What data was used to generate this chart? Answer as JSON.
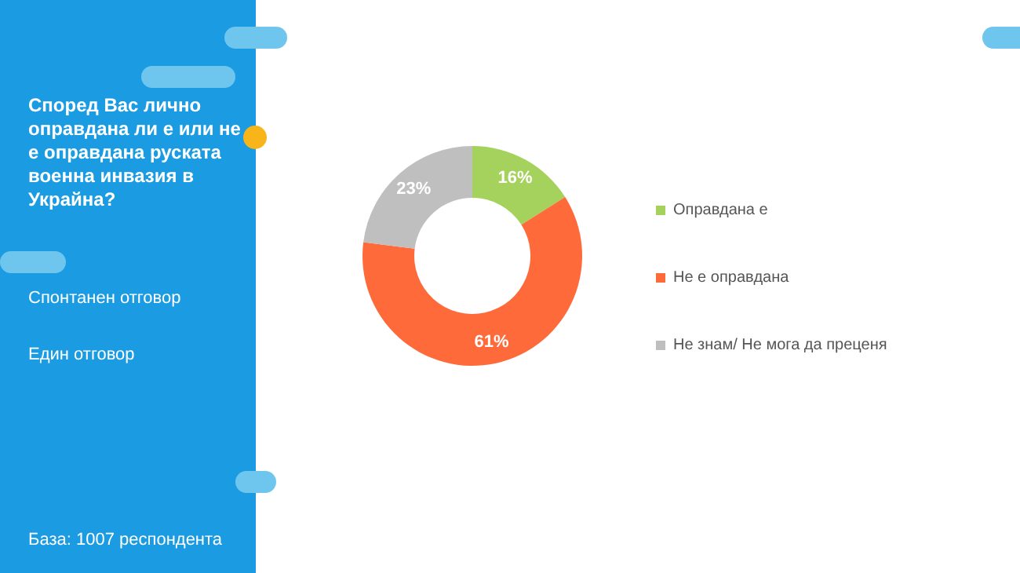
{
  "chart_data": {
    "type": "donut",
    "title": "Според Вас лично оправдана ли е или не е оправдана руската военна инвазия в Украйна?",
    "annotations": [
      "Спонтанен отговор",
      "Един отговор",
      "База:  1007 респондента"
    ],
    "categories": [
      "Оправдана е",
      "Не е оправдана",
      "Не знам/ Не мога да преценя"
    ],
    "values": [
      16,
      61,
      23
    ],
    "value_labels": [
      "16%",
      "61%",
      "23%"
    ],
    "colors": [
      "#a5d25d",
      "#ff6a3b",
      "#bfbfbf"
    ],
    "legend": "right"
  }
}
